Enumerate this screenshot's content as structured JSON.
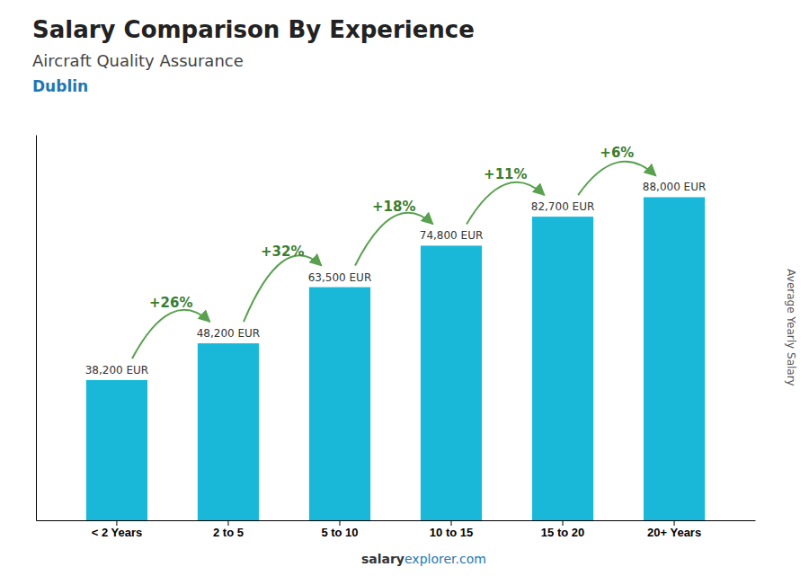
{
  "chart_data": {
    "type": "bar",
    "title": "Salary Comparison By Experience",
    "subtitle": "Aircraft Quality Assurance",
    "city": "Dublin",
    "categories": [
      "< 2 Years",
      "2 to 5",
      "5 to 10",
      "10 to 15",
      "15 to 20",
      "20+ Years"
    ],
    "values": [
      38200,
      48200,
      63500,
      74800,
      82700,
      88000
    ],
    "value_labels": [
      "38,200 EUR",
      "48,200 EUR",
      "63,500 EUR",
      "74,800 EUR",
      "82,700 EUR",
      "88,000 EUR"
    ],
    "data_labels": true,
    "annotations": [
      "+26%",
      "+32%",
      "+18%",
      "+11%",
      "+6%"
    ],
    "ylabel": "Average Yearly Salary",
    "source": [
      "salary",
      "explorer.com"
    ],
    "color": "#1ab8d8",
    "ylim": [
      0,
      105000
    ],
    "tick_labels": "x",
    "grid": false
  }
}
